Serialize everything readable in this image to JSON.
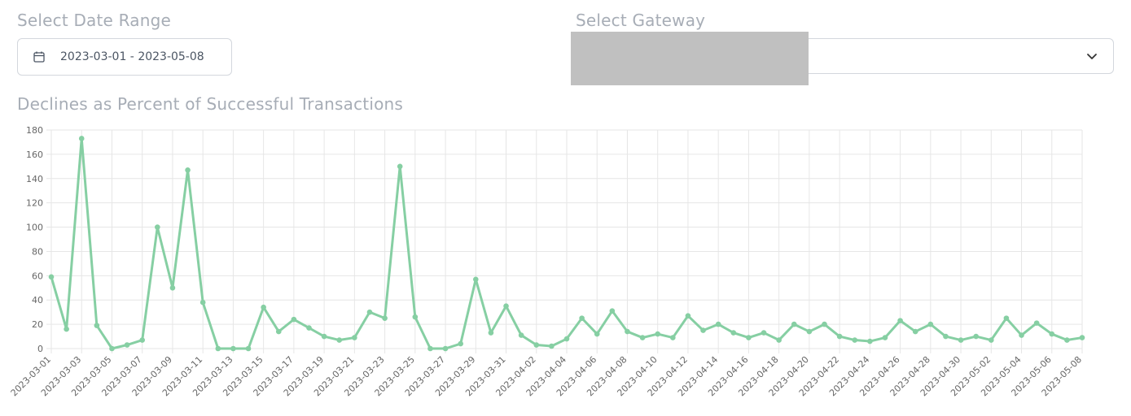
{
  "filters": {
    "date_range_label": "Select Date Range",
    "date_range_value": "2023-03-01 - 2023-05-08",
    "gateway_label": "Select Gateway",
    "gateway_value": ""
  },
  "icons": {
    "date_picker": "calendar-icon",
    "gateway_select": "chevron-down-icon"
  },
  "colors": {
    "series_line": "#86cfa3",
    "grid": "#e6e6e6",
    "label_text": "#a7adb6"
  },
  "chart_data": {
    "type": "line",
    "title": "Declines as Percent of Successful Transactions",
    "xlabel": "",
    "ylabel": "",
    "ylim": [
      0,
      180
    ],
    "yticks": [
      0,
      20,
      40,
      60,
      80,
      100,
      120,
      140,
      160,
      180
    ],
    "grid": true,
    "legend": "none",
    "x": [
      "2023-03-01",
      "2023-03-02",
      "2023-03-03",
      "2023-03-04",
      "2023-03-05",
      "2023-03-06",
      "2023-03-07",
      "2023-03-08",
      "2023-03-09",
      "2023-03-10",
      "2023-03-11",
      "2023-03-12",
      "2023-03-13",
      "2023-03-14",
      "2023-03-15",
      "2023-03-16",
      "2023-03-17",
      "2023-03-18",
      "2023-03-19",
      "2023-03-20",
      "2023-03-21",
      "2023-03-22",
      "2023-03-23",
      "2023-03-24",
      "2023-03-25",
      "2023-03-26",
      "2023-03-27",
      "2023-03-28",
      "2023-03-29",
      "2023-03-30",
      "2023-03-31",
      "2023-04-01",
      "2023-04-02",
      "2023-04-03",
      "2023-04-04",
      "2023-04-05",
      "2023-04-06",
      "2023-04-07",
      "2023-04-08",
      "2023-04-09",
      "2023-04-10",
      "2023-04-11",
      "2023-04-12",
      "2023-04-13",
      "2023-04-14",
      "2023-04-15",
      "2023-04-16",
      "2023-04-17",
      "2023-04-18",
      "2023-04-19",
      "2023-04-20",
      "2023-04-21",
      "2023-04-22",
      "2023-04-23",
      "2023-04-24",
      "2023-04-25",
      "2023-04-26",
      "2023-04-27",
      "2023-04-28",
      "2023-04-29",
      "2023-04-30",
      "2023-05-01",
      "2023-05-02",
      "2023-05-03",
      "2023-05-04",
      "2023-05-05",
      "2023-05-06",
      "2023-05-07",
      "2023-05-08"
    ],
    "xtick_labels": [
      "2023-03-01",
      "2023-03-03",
      "2023-03-05",
      "2023-03-07",
      "2023-03-09",
      "2023-03-11",
      "2023-03-13",
      "2023-03-15",
      "2023-03-17",
      "2023-03-19",
      "2023-03-21",
      "2023-03-23",
      "2023-03-25",
      "2023-03-27",
      "2023-03-29",
      "2023-03-31",
      "2023-04-02",
      "2023-04-04",
      "2023-04-06",
      "2023-04-08",
      "2023-04-10",
      "2023-04-12",
      "2023-04-14",
      "2023-04-16",
      "2023-04-18",
      "2023-04-20",
      "2023-04-22",
      "2023-04-24",
      "2023-04-26",
      "2023-04-28",
      "2023-04-30",
      "2023-05-02",
      "2023-05-04",
      "2023-05-06",
      "2023-05-08"
    ],
    "series": [
      {
        "values": [
          59,
          16,
          173,
          19,
          0,
          3,
          7,
          100,
          50,
          147,
          38,
          0,
          0,
          0,
          34,
          14,
          24,
          17,
          10,
          7,
          9,
          30,
          25,
          150,
          26,
          0,
          0,
          4,
          57,
          13,
          35,
          11,
          3,
          2,
          8,
          25,
          12,
          31,
          14,
          9,
          12,
          9,
          27,
          15,
          20,
          13,
          9,
          13,
          7,
          20,
          14,
          20,
          10,
          7,
          6,
          9,
          23,
          14,
          20,
          10,
          7,
          10,
          7,
          25,
          11,
          21,
          12,
          7,
          9
        ]
      }
    ]
  }
}
